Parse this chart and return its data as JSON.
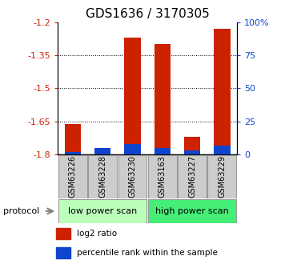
{
  "title": "GDS1636 / 3170305",
  "samples": [
    "GSM63226",
    "GSM63228",
    "GSM63230",
    "GSM63163",
    "GSM63227",
    "GSM63229"
  ],
  "log2_ratio": [
    -1.66,
    -1.79,
    -1.27,
    -1.3,
    -1.72,
    -1.23
  ],
  "percentile_rank": [
    2,
    5,
    8,
    5,
    3,
    7
  ],
  "ymin": -1.8,
  "ymax": -1.2,
  "yticks": [
    -1.8,
    -1.65,
    -1.5,
    -1.35,
    -1.2
  ],
  "ytick_labels": [
    "-1.8",
    "-1.65",
    "-1.5",
    "-1.35",
    "-1.2"
  ],
  "right_yticks": [
    0,
    25,
    50,
    75,
    100
  ],
  "bar_bottom": -1.8,
  "red_color": "#cc2200",
  "blue_color": "#1144cc",
  "group_labels": [
    "low power scan",
    "high power scan"
  ],
  "group_colors": [
    "#bbffbb",
    "#44ee77"
  ],
  "protocol_label": "protocol",
  "legend_items": [
    "log2 ratio",
    "percentile rank within the sample"
  ],
  "title_fontsize": 11,
  "tick_fontsize": 8,
  "sample_fontsize": 7,
  "legend_fontsize": 7.5,
  "proto_fontsize": 8
}
